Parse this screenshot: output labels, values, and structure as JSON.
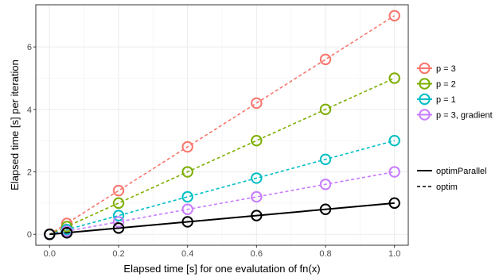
{
  "chart_data": {
    "type": "line",
    "title": "",
    "xlabel": "Elapsed time [s] for one evalutation of fn(x)",
    "ylabel": "Elapsed time [s] per iteration",
    "xlim": [
      -0.04,
      1.04
    ],
    "ylim": [
      -0.35,
      7.35
    ],
    "x_ticks": [
      0.0,
      0.2,
      0.4,
      0.6,
      0.8,
      1.0
    ],
    "x_tick_labels": [
      "0.0",
      "0.2",
      "0.4",
      "0.6",
      "0.8",
      "1.0"
    ],
    "y_ticks": [
      0,
      2,
      4,
      6
    ],
    "y_tick_labels": [
      "0",
      "2",
      "4",
      "6"
    ],
    "grid": true,
    "legend_position": "right",
    "marker": "open-circle",
    "x": [
      0,
      0.05,
      0.2,
      0.4,
      0.6,
      0.8,
      1.0
    ],
    "series": [
      {
        "name": "p = 3",
        "color": "#F8766D",
        "linetype": "dashed",
        "method": "optim",
        "values": [
          0,
          0.35,
          1.4,
          2.8,
          4.2,
          5.6,
          7.0
        ]
      },
      {
        "name": "p = 2",
        "color": "#7CAE00",
        "linetype": "dashed",
        "method": "optim",
        "values": [
          0,
          0.25,
          1.0,
          2.0,
          3.0,
          4.0,
          5.0
        ]
      },
      {
        "name": "p = 1",
        "color": "#00BFC4",
        "linetype": "dashed",
        "method": "optim",
        "values": [
          0,
          0.15,
          0.6,
          1.2,
          1.8,
          2.4,
          3.0
        ]
      },
      {
        "name": "p = 3, gradient",
        "color": "#C77CFF",
        "linetype": "dashed",
        "method": "optim",
        "values": [
          0,
          0.1,
          0.4,
          0.8,
          1.2,
          1.6,
          2.0
        ]
      },
      {
        "name": "optimParallel",
        "color": "#000000",
        "linetype": "solid",
        "method": "optimParallel",
        "values": [
          0,
          0.05,
          0.2,
          0.4,
          0.6,
          0.8,
          1.0
        ]
      }
    ],
    "legend_color": [
      {
        "label": "p = 3",
        "color": "#F8766D"
      },
      {
        "label": "p = 2",
        "color": "#7CAE00"
      },
      {
        "label": "p = 1",
        "color": "#00BFC4"
      },
      {
        "label": "p = 3, gradient",
        "color": "#C77CFF"
      }
    ],
    "legend_linetype": [
      {
        "label": "optimParallel",
        "linetype": "solid"
      },
      {
        "label": "optim",
        "linetype": "dashed"
      }
    ]
  }
}
